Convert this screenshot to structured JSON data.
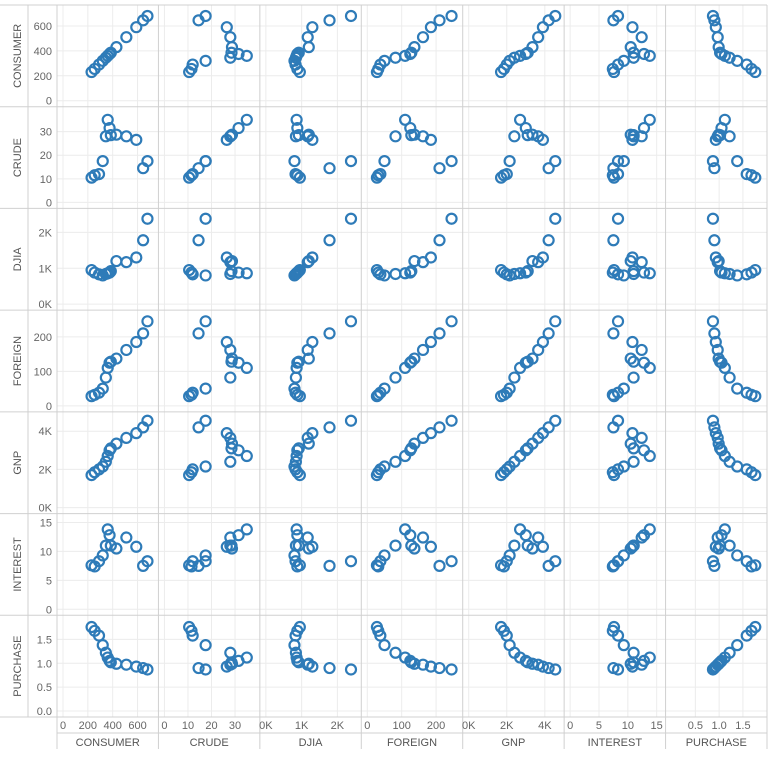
{
  "chart_data": {
    "type": "scatter",
    "subtype": "scatter-matrix",
    "variables": [
      "CONSUMER",
      "CRUDE",
      "DJIA",
      "FOREIGN",
      "GNP",
      "INTEREST",
      "PURCHASE"
    ],
    "axes": {
      "CONSUMER": {
        "range": [
          0,
          720
        ],
        "ticks": [
          0,
          200,
          400,
          600
        ],
        "tick_labels": [
          "0",
          "200",
          "400",
          "600"
        ]
      },
      "CRUDE": {
        "range": [
          0,
          38
        ],
        "ticks": [
          0,
          10,
          20,
          30
        ],
        "tick_labels": [
          "0",
          "10",
          "20",
          "30"
        ]
      },
      "DJIA": {
        "range": [
          0,
          2500
        ],
        "ticks": [
          0,
          1000,
          2000
        ],
        "tick_labels": [
          "0K",
          "1K",
          "2K"
        ]
      },
      "FOREIGN": {
        "range": [
          0,
          260
        ],
        "ticks": [
          0,
          100,
          200
        ],
        "tick_labels": [
          "0",
          "100",
          "200"
        ]
      },
      "GNP": {
        "range": [
          0,
          4700
        ],
        "ticks": [
          0,
          2000,
          4000
        ],
        "tick_labels": [
          "0K",
          "2K",
          "4K"
        ]
      },
      "INTEREST": {
        "range": [
          0,
          15.5
        ],
        "ticks": [
          0,
          5,
          10,
          15
        ],
        "tick_labels": [
          "0",
          "5",
          "10",
          "15"
        ]
      },
      "PURCHASE": {
        "range": [
          0,
          1.88
        ],
        "ticks": [
          0,
          0.5,
          1,
          1.5
        ],
        "tick_labels": [
          "0.5",
          "1",
          "1.5"
        ]
      }
    },
    "row_tick_labels": {
      "CONSUMER": [
        "0",
        "200",
        "400",
        "600"
      ],
      "CRUDE": [
        "0",
        "10",
        "20",
        "30"
      ],
      "DJIA": [
        "0K",
        "1K",
        "2K"
      ],
      "FOREIGN": [
        "0",
        "100",
        "200"
      ],
      "GNP": [
        "0K",
        "2K",
        "4K"
      ],
      "INTEREST": [
        "0",
        "5",
        "10",
        "15"
      ],
      "PURCHASE": [
        "0.0",
        "0.5",
        "1.0",
        "1.5"
      ]
    },
    "col_tick_labels": {
      "CONSUMER": [
        "0",
        "200",
        "400",
        "600"
      ],
      "CRUDE": [
        "0",
        "10",
        "20",
        "30"
      ],
      "DJIA": [
        "0K",
        "1K",
        "2K"
      ],
      "FOREIGN": [
        "0",
        "100",
        "200"
      ],
      "GNP": [
        "0K",
        "2K",
        "4K"
      ],
      "INTEREST": [
        "0",
        "5",
        "10",
        "15"
      ],
      "PURCHASE": [
        "0.5",
        "1.0",
        "1.5"
      ]
    },
    "grid": true,
    "legend": "none",
    "records": [
      {
        "CONSUMER": 230,
        "CRUDE": 10.5,
        "DJIA": 950,
        "FOREIGN": 28,
        "GNP": 1700,
        "INTEREST": 7.6,
        "PURCHASE": 1.76
      },
      {
        "CONSUMER": 255,
        "CRUDE": 11.5,
        "DJIA": 880,
        "FOREIGN": 32,
        "GNP": 1850,
        "INTEREST": 7.4,
        "PURCHASE": 1.68
      },
      {
        "CONSUMER": 290,
        "CRUDE": 12.0,
        "DJIA": 830,
        "FOREIGN": 38,
        "GNP": 2000,
        "INTEREST": 8.3,
        "PURCHASE": 1.58
      },
      {
        "CONSUMER": 320,
        "CRUDE": 17.5,
        "DJIA": 800,
        "FOREIGN": 50,
        "GNP": 2150,
        "INTEREST": 9.3,
        "PURCHASE": 1.38
      },
      {
        "CONSUMER": 345,
        "CRUDE": 28.0,
        "DJIA": 840,
        "FOREIGN": 82,
        "GNP": 2400,
        "INTEREST": 11.0,
        "PURCHASE": 1.22
      },
      {
        "CONSUMER": 360,
        "CRUDE": 35.0,
        "DJIA": 860,
        "FOREIGN": 110,
        "GNP": 2700,
        "INTEREST": 13.8,
        "PURCHASE": 1.12
      },
      {
        "CONSUMER": 375,
        "CRUDE": 31.5,
        "DJIA": 880,
        "FOREIGN": 125,
        "GNP": 3000,
        "INTEREST": 12.8,
        "PURCHASE": 1.05
      },
      {
        "CONSUMER": 385,
        "CRUDE": 28.5,
        "DJIA": 920,
        "FOREIGN": 128,
        "GNP": 3100,
        "INTEREST": 11.0,
        "PURCHASE": 1.02
      },
      {
        "CONSUMER": 430,
        "CRUDE": 28.7,
        "DJIA": 1200,
        "FOREIGN": 137,
        "GNP": 3350,
        "INTEREST": 10.5,
        "PURCHASE": 0.99
      },
      {
        "CONSUMER": 510,
        "CRUDE": 28.0,
        "DJIA": 1170,
        "FOREIGN": 162,
        "GNP": 3650,
        "INTEREST": 12.4,
        "PURCHASE": 0.97
      },
      {
        "CONSUMER": 590,
        "CRUDE": 26.5,
        "DJIA": 1300,
        "FOREIGN": 185,
        "GNP": 3900,
        "INTEREST": 10.8,
        "PURCHASE": 0.93
      },
      {
        "CONSUMER": 645,
        "CRUDE": 14.5,
        "DJIA": 1780,
        "FOREIGN": 210,
        "GNP": 4200,
        "INTEREST": 7.5,
        "PURCHASE": 0.9
      },
      {
        "CONSUMER": 680,
        "CRUDE": 17.5,
        "DJIA": 2380,
        "FOREIGN": 245,
        "GNP": 4550,
        "INTEREST": 8.3,
        "PURCHASE": 0.87
      }
    ],
    "marker_color": "#2e7bb8",
    "grid_color": "#ececec",
    "border_color": "#d0d0d0"
  }
}
